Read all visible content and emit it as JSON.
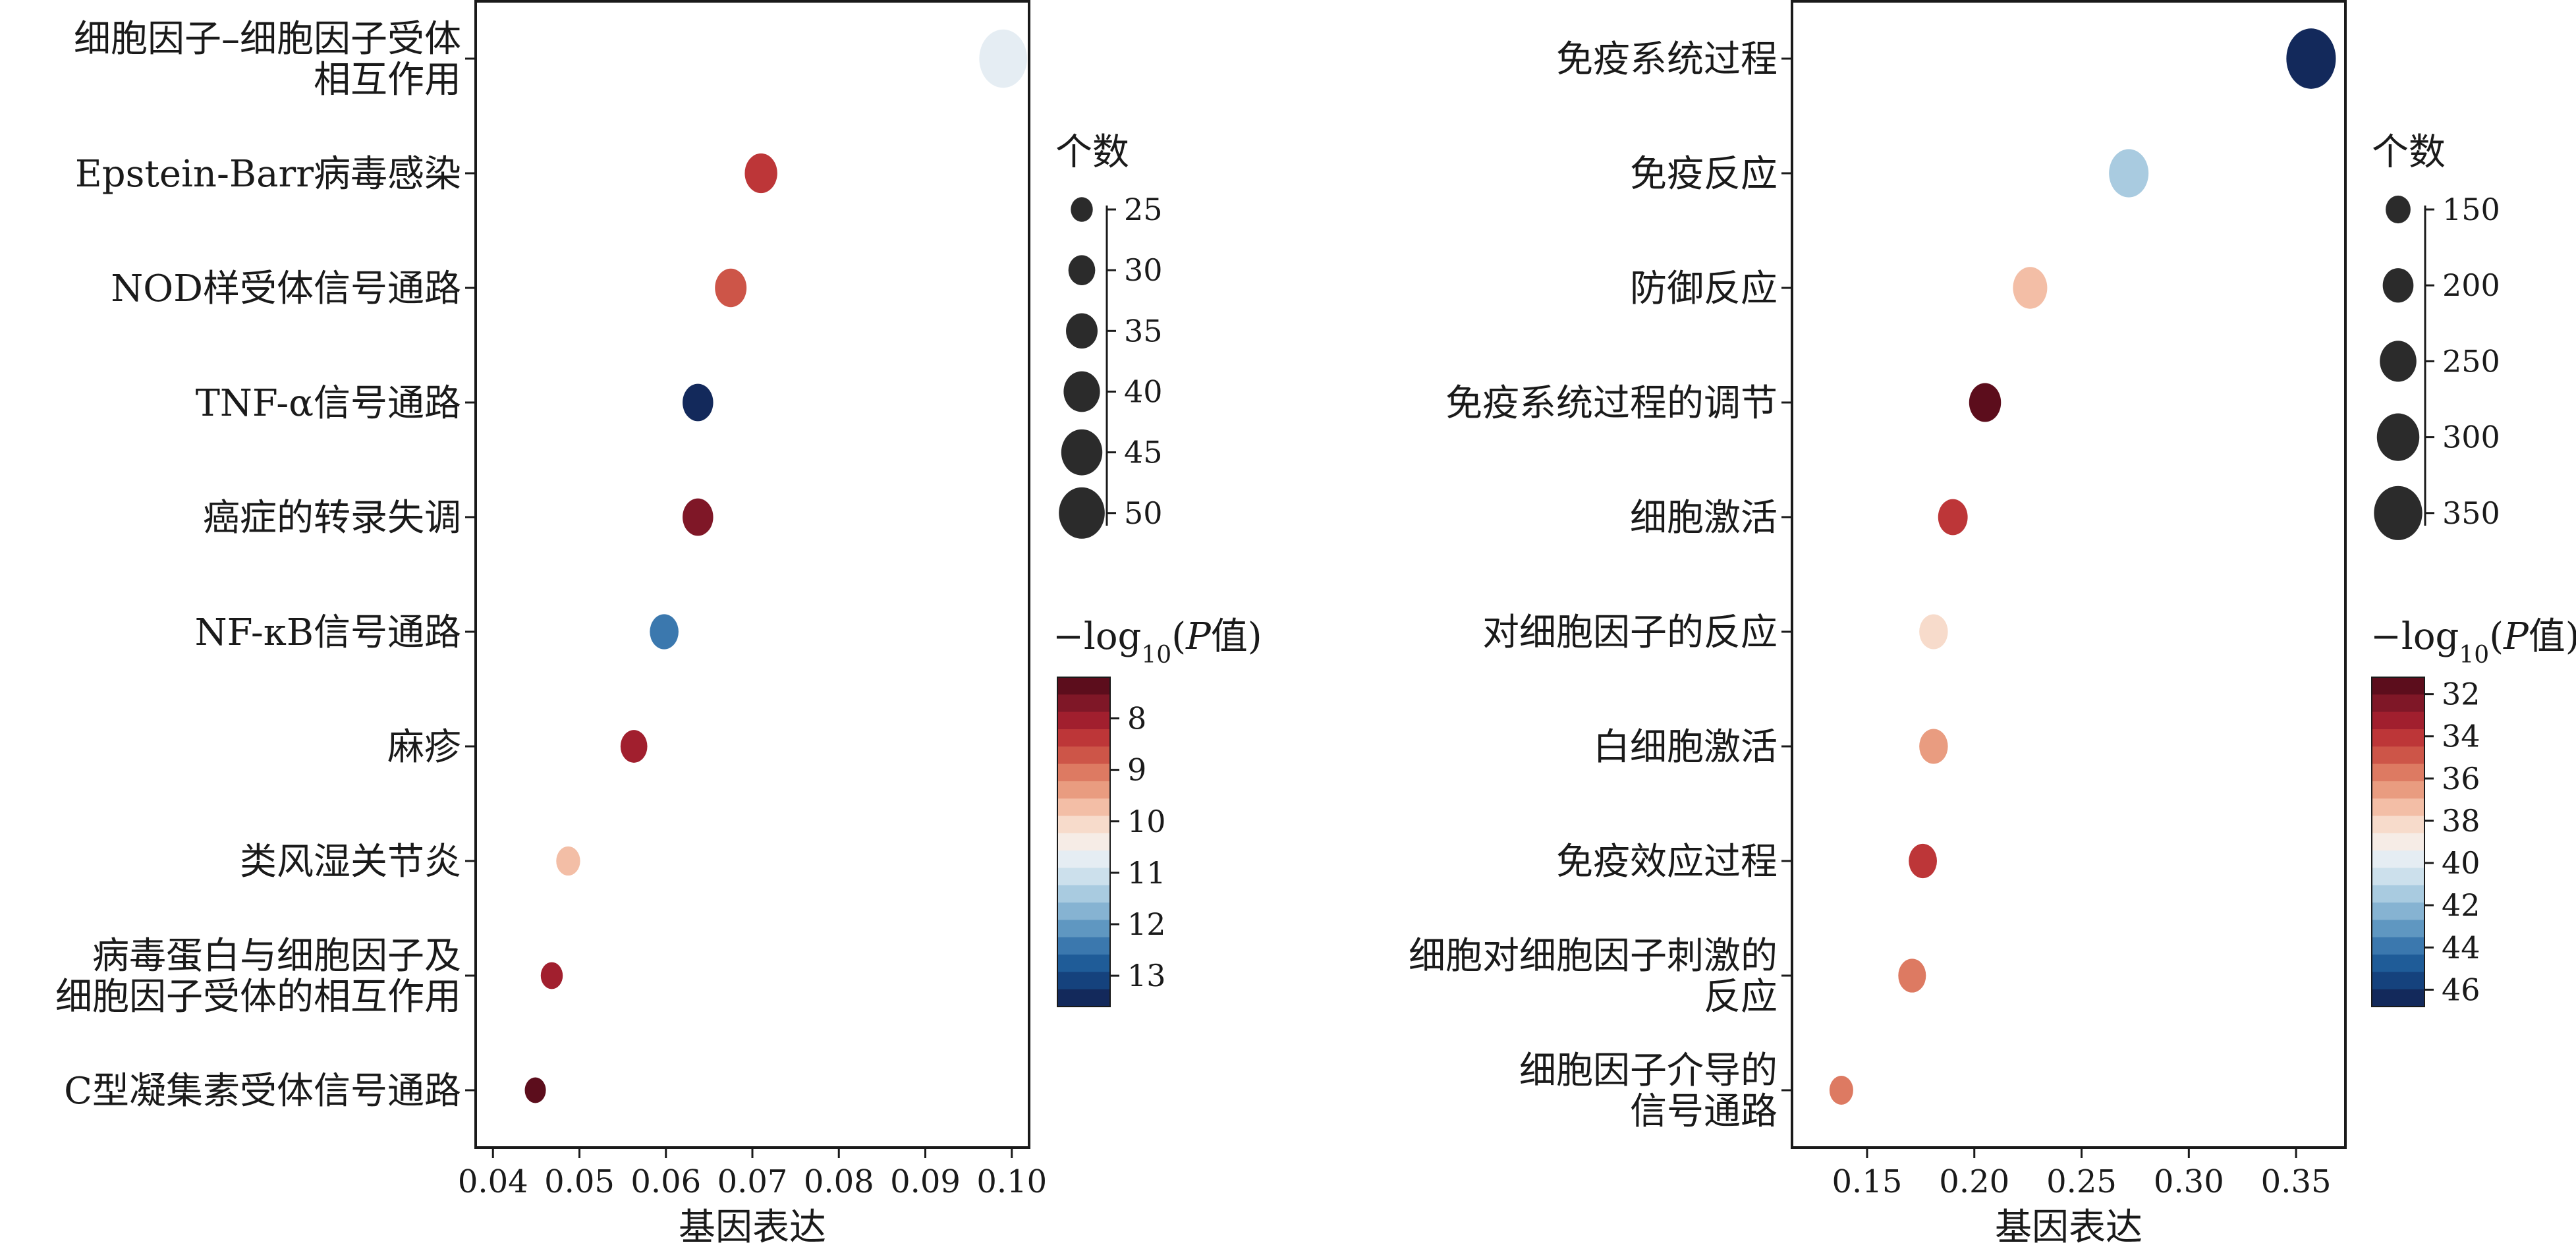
{
  "chart_data": [
    {
      "type": "scatter",
      "xlabel": "基因表达",
      "xlim": [
        0.038,
        0.102
      ],
      "xticks": [
        "0.04",
        "0.05",
        "0.06",
        "0.07",
        "0.08",
        "0.09",
        "0.10"
      ],
      "xtick_values": [
        0.04,
        0.05,
        0.06,
        0.07,
        0.08,
        0.09,
        0.1
      ],
      "categories": [
        [
          "细胞因子–细胞因子受体",
          "相互作用"
        ],
        [
          "Epstein-Barr病毒感染"
        ],
        [
          "NOD样受体信号通路"
        ],
        [
          "TNF-α信号通路"
        ],
        [
          "癌症的转录失调"
        ],
        [
          "NF-κB信号通路"
        ],
        [
          "麻疹"
        ],
        [
          "类风湿关节炎"
        ],
        [
          "病毒蛋白与细胞因子及",
          "细胞因子受体的相互作用"
        ],
        [
          "C型凝集素受体信号通路"
        ]
      ],
      "points": [
        {
          "x": 0.099,
          "count": 52,
          "neglogp": 10.8
        },
        {
          "x": 0.071,
          "count": 36,
          "neglogp": 8.3
        },
        {
          "x": 0.0675,
          "count": 35,
          "neglogp": 8.7
        },
        {
          "x": 0.0637,
          "count": 34,
          "neglogp": 13.3
        },
        {
          "x": 0.0637,
          "count": 34,
          "neglogp": 7.6
        },
        {
          "x": 0.0598,
          "count": 32,
          "neglogp": 12.5
        },
        {
          "x": 0.0563,
          "count": 30,
          "neglogp": 8.2
        },
        {
          "x": 0.0487,
          "count": 27,
          "neglogp": 9.8
        },
        {
          "x": 0.0468,
          "count": 25,
          "neglogp": 8.1
        },
        {
          "x": 0.0449,
          "count": 24,
          "neglogp": 7.4
        }
      ],
      "size_legend": {
        "title": "个数",
        "values": [
          25,
          30,
          35,
          40,
          45,
          50
        ]
      },
      "color_legend": {
        "title_prefix": "−log",
        "title_sub": "10",
        "title_mid": "(",
        "title_italic": "P",
        "title_suffix": "值)",
        "ticks": [
          8,
          9,
          10,
          11,
          12,
          13
        ],
        "range": [
          7.2,
          13.6
        ]
      }
    },
    {
      "type": "scatter",
      "xlabel": "基因表达",
      "xlim": [
        0.115,
        0.373
      ],
      "xticks": [
        "0.15",
        "0.20",
        "0.25",
        "0.30",
        "0.35"
      ],
      "xtick_values": [
        0.15,
        0.2,
        0.25,
        0.3,
        0.35
      ],
      "categories": [
        [
          "免疫系统过程"
        ],
        [
          "免疫反应"
        ],
        [
          "防御反应"
        ],
        [
          "免疫系统过程的调节"
        ],
        [
          "细胞激活"
        ],
        [
          "对细胞因子的反应"
        ],
        [
          "白细胞激活"
        ],
        [
          "免疫效应过程"
        ],
        [
          "细胞对细胞因子刺激的",
          "反应"
        ],
        [
          "细胞因子介导的",
          "信号通路"
        ]
      ],
      "points": [
        {
          "x": 0.357,
          "count": 360,
          "neglogp": 46.5
        },
        {
          "x": 0.272,
          "count": 275,
          "neglogp": 41.2
        },
        {
          "x": 0.226,
          "count": 230,
          "neglogp": 37.5
        },
        {
          "x": 0.205,
          "count": 210,
          "neglogp": 31.8
        },
        {
          "x": 0.19,
          "count": 190,
          "neglogp": 34.3
        },
        {
          "x": 0.181,
          "count": 182,
          "neglogp": 37.8
        },
        {
          "x": 0.181,
          "count": 182,
          "neglogp": 36.6
        },
        {
          "x": 0.176,
          "count": 178,
          "neglogp": 34.0
        },
        {
          "x": 0.171,
          "count": 174,
          "neglogp": 36.0
        },
        {
          "x": 0.138,
          "count": 140,
          "neglogp": 35.6
        }
      ],
      "size_legend": {
        "title": "个数",
        "values": [
          150,
          200,
          250,
          300,
          350
        ]
      },
      "color_legend": {
        "title_prefix": "−log",
        "title_sub": "10",
        "title_mid": "(",
        "title_italic": "P",
        "title_suffix": "值)",
        "ticks": [
          32,
          34,
          36,
          38,
          40,
          42,
          44,
          46
        ],
        "range": [
          31.2,
          46.8
        ]
      }
    }
  ],
  "colors": {
    "palette": [
      "#5c0d1c",
      "#7f1727",
      "#a11f2e",
      "#bd3638",
      "#cd5548",
      "#dd7a62",
      "#e99c80",
      "#f3bea6",
      "#f7dbcb",
      "#f6ece6",
      "#e5edf3",
      "#cce0ec",
      "#a9cbe0",
      "#86b3d2",
      "#5f97c1",
      "#3b78ae",
      "#1f5c98",
      "#15427d",
      "#13295b"
    ],
    "dot_legend": "#2b2b2b",
    "axis": "#1a1a1a"
  }
}
